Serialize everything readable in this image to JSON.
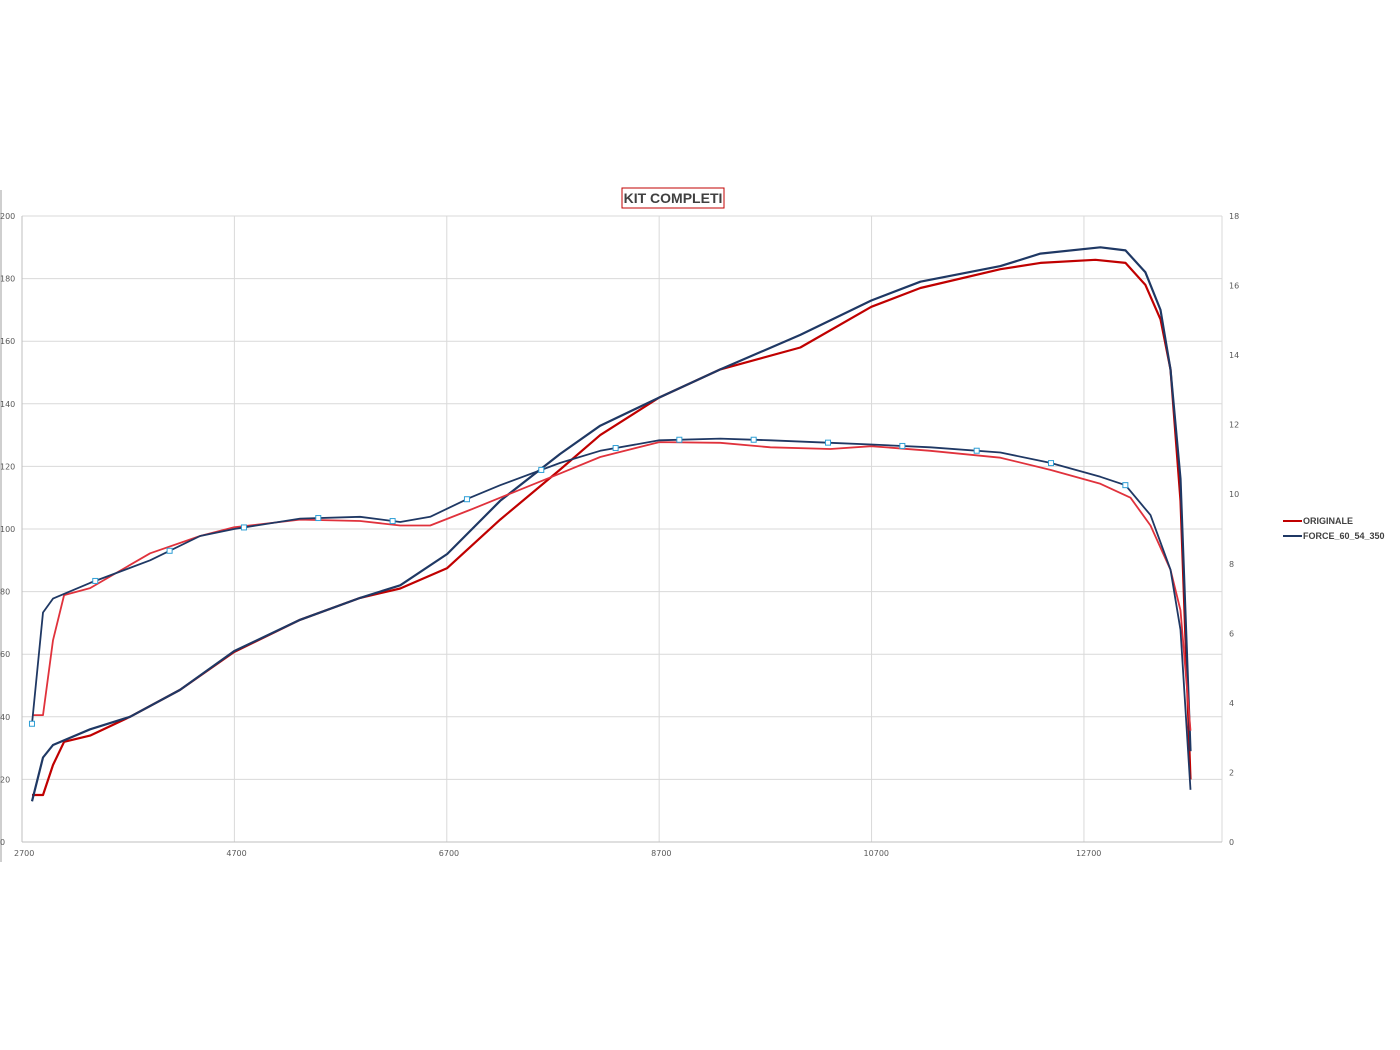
{
  "chart_data": {
    "type": "line",
    "title": "KIT COMPLETI",
    "xlim": [
      2700,
      14000
    ],
    "x_ticks": [
      "2700",
      "4700",
      "6700",
      "8700",
      "10700",
      "12700"
    ],
    "ylim_left": [
      0,
      200
    ],
    "y_ticks_left": [
      "0",
      "20",
      "40",
      "60",
      "80",
      "100",
      "120",
      "140",
      "160",
      "180",
      "200"
    ],
    "ylim_right": [
      0,
      18
    ],
    "y_ticks_right": [
      "0",
      "2",
      "4",
      "6",
      "8",
      "10",
      "12",
      "14",
      "16",
      "18"
    ],
    "grid": true,
    "legend_position": "right",
    "legend": [
      {
        "name": "ORIGINALE",
        "color": "#c00000"
      },
      {
        "name": "FORCE_60_54_350",
        "color": "#1f3864"
      }
    ],
    "series": [
      {
        "name": "ORIGINALE",
        "axis": "left",
        "color": "#c00000",
        "points": [
          [
            2794,
            15
          ],
          [
            2898,
            15
          ],
          [
            2992,
            24.6
          ],
          [
            3096,
            32
          ],
          [
            3341,
            34
          ],
          [
            3717,
            40
          ],
          [
            4188,
            48.6
          ],
          [
            4697,
            60.7
          ],
          [
            5319,
            71
          ],
          [
            5884,
            78
          ],
          [
            6261,
            81
          ],
          [
            6704,
            87.5
          ],
          [
            7203,
            103
          ],
          [
            7768,
            119
          ],
          [
            8145,
            130
          ],
          [
            8701,
            142
          ],
          [
            9276,
            151
          ],
          [
            10029,
            158
          ],
          [
            10698,
            171
          ],
          [
            11160,
            177
          ],
          [
            11913,
            183
          ],
          [
            12290,
            185
          ],
          [
            12808,
            186
          ],
          [
            13091,
            185
          ],
          [
            13279,
            178
          ],
          [
            13421,
            167
          ],
          [
            13515,
            151
          ],
          [
            13609,
            109
          ],
          [
            13703,
            20
          ]
        ]
      },
      {
        "name": "FORCE_60_54_350",
        "axis": "left",
        "color": "#1f3864",
        "points": [
          [
            2794,
            13
          ],
          [
            2898,
            27
          ],
          [
            2992,
            31
          ],
          [
            3341,
            36
          ],
          [
            3717,
            40
          ],
          [
            4188,
            48.6
          ],
          [
            4697,
            61
          ],
          [
            5319,
            71
          ],
          [
            5884,
            78
          ],
          [
            6261,
            82
          ],
          [
            6704,
            92
          ],
          [
            7203,
            109
          ],
          [
            7768,
            124
          ],
          [
            8145,
            133
          ],
          [
            8701,
            142
          ],
          [
            9276,
            151
          ],
          [
            10029,
            162
          ],
          [
            10698,
            173
          ],
          [
            11160,
            179
          ],
          [
            11913,
            184
          ],
          [
            12290,
            188
          ],
          [
            12855,
            190
          ],
          [
            13091,
            189
          ],
          [
            13279,
            182
          ],
          [
            13421,
            170
          ],
          [
            13515,
            151
          ],
          [
            13609,
            116
          ],
          [
            13703,
            29
          ]
        ]
      },
      {
        "name": "ORIGINALE",
        "axis": "right",
        "color": "#e0323c",
        "points": [
          [
            2794,
            3.65
          ],
          [
            2898,
            3.65
          ],
          [
            2992,
            5.8
          ],
          [
            3096,
            7.1
          ],
          [
            3341,
            7.3
          ],
          [
            3906,
            8.3
          ],
          [
            4377,
            8.8
          ],
          [
            4697,
            9.05
          ],
          [
            5319,
            9.27
          ],
          [
            5884,
            9.23
          ],
          [
            6261,
            9.1
          ],
          [
            6544,
            9.1
          ],
          [
            6920,
            9.55
          ],
          [
            7203,
            9.9
          ],
          [
            7768,
            10.6
          ],
          [
            8145,
            11.07
          ],
          [
            8701,
            11.5
          ],
          [
            9276,
            11.48
          ],
          [
            9747,
            11.35
          ],
          [
            10312,
            11.3
          ],
          [
            10698,
            11.38
          ],
          [
            11254,
            11.25
          ],
          [
            11913,
            11.05
          ],
          [
            12384,
            10.7
          ],
          [
            12855,
            10.3
          ],
          [
            13138,
            9.9
          ],
          [
            13327,
            9.1
          ],
          [
            13515,
            7.83
          ],
          [
            13609,
            6.66
          ],
          [
            13703,
            3.2
          ]
        ]
      },
      {
        "name": "FORCE_60_54_350",
        "axis": "right",
        "color": "#1f3864",
        "markers": true,
        "points": [
          [
            2794,
            3.4
          ],
          [
            2898,
            6.6
          ],
          [
            2992,
            7.0
          ],
          [
            3341,
            7.45
          ],
          [
            3906,
            8.1
          ],
          [
            4377,
            8.8
          ],
          [
            4697,
            9.0
          ],
          [
            5319,
            9.3
          ],
          [
            5884,
            9.35
          ],
          [
            6261,
            9.2
          ],
          [
            6544,
            9.35
          ],
          [
            6920,
            9.9
          ],
          [
            7203,
            10.26
          ],
          [
            7768,
            10.9
          ],
          [
            8145,
            11.25
          ],
          [
            8701,
            11.55
          ],
          [
            9276,
            11.6
          ],
          [
            9747,
            11.55
          ],
          [
            10312,
            11.48
          ],
          [
            10698,
            11.43
          ],
          [
            11254,
            11.35
          ],
          [
            11913,
            11.2
          ],
          [
            12384,
            10.9
          ],
          [
            12855,
            10.5
          ],
          [
            13091,
            10.26
          ],
          [
            13327,
            9.4
          ],
          [
            13515,
            7.83
          ],
          [
            13609,
            6.1
          ],
          [
            13703,
            1.5
          ]
        ],
        "marker_x": [
          2794,
          3390,
          4090,
          4790,
          5490,
          6190,
          6890,
          7590,
          8290,
          8890,
          9590,
          10290,
          10990,
          11690,
          12390,
          13090
        ]
      }
    ]
  }
}
